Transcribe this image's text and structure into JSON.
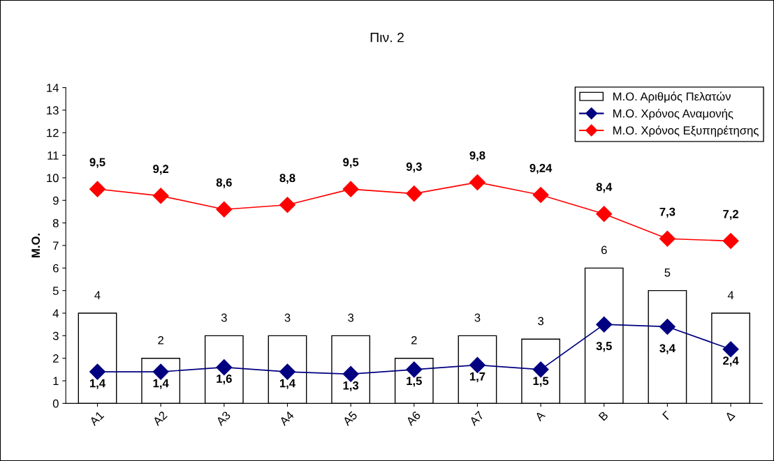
{
  "chart_data": {
    "type": "bar",
    "title": "Πιν. 2",
    "ylabel": "Μ.Ο.",
    "categories": [
      "A1",
      "A2",
      "A3",
      "A4",
      "A5",
      "A6",
      "A7",
      "Α",
      "Β",
      "Γ",
      "Δ"
    ],
    "series": [
      {
        "name": "Μ.Ο. Αριθμός Πελατών",
        "color": "#ffffff",
        "values": [
          4,
          2,
          3,
          3,
          3,
          2,
          3,
          2.85,
          6,
          5,
          4
        ],
        "value_labels": [
          "4",
          "2",
          "3",
          "3",
          "3",
          "2",
          "3",
          "3",
          "6",
          "5",
          "4"
        ]
      },
      {
        "name": "Μ.Ο. Χρόνος Αναμονής",
        "type": "line",
        "color": "#000080",
        "marker": "diamond",
        "values": [
          1.4,
          1.4,
          1.6,
          1.4,
          1.3,
          1.5,
          1.7,
          1.5,
          3.5,
          3.4,
          2.4
        ],
        "value_labels": [
          "1,4",
          "1,4",
          "1,6",
          "1,4",
          "1,3",
          "1,5",
          "1,7",
          "1,5",
          "3,5",
          "3,4",
          "2,4"
        ]
      },
      {
        "name": "Μ.Ο. Χρόνος Εξυπηρέτησης",
        "type": "line",
        "color": "#ff0000",
        "marker": "diamond",
        "values": [
          9.5,
          9.2,
          8.6,
          8.8,
          9.5,
          9.3,
          9.8,
          9.24,
          8.4,
          7.3,
          7.2
        ],
        "value_labels": [
          "9,5",
          "9,2",
          "8,6",
          "8,8",
          "9,5",
          "9,3",
          "9,8",
          "9,24",
          "8,4",
          "7,3",
          "7,2"
        ]
      }
    ],
    "ylim": [
      0,
      14
    ],
    "yticks": [
      0,
      1,
      2,
      3,
      4,
      5,
      6,
      7,
      8,
      9,
      10,
      11,
      12,
      13,
      14
    ],
    "grid": false,
    "legend": "top right"
  }
}
